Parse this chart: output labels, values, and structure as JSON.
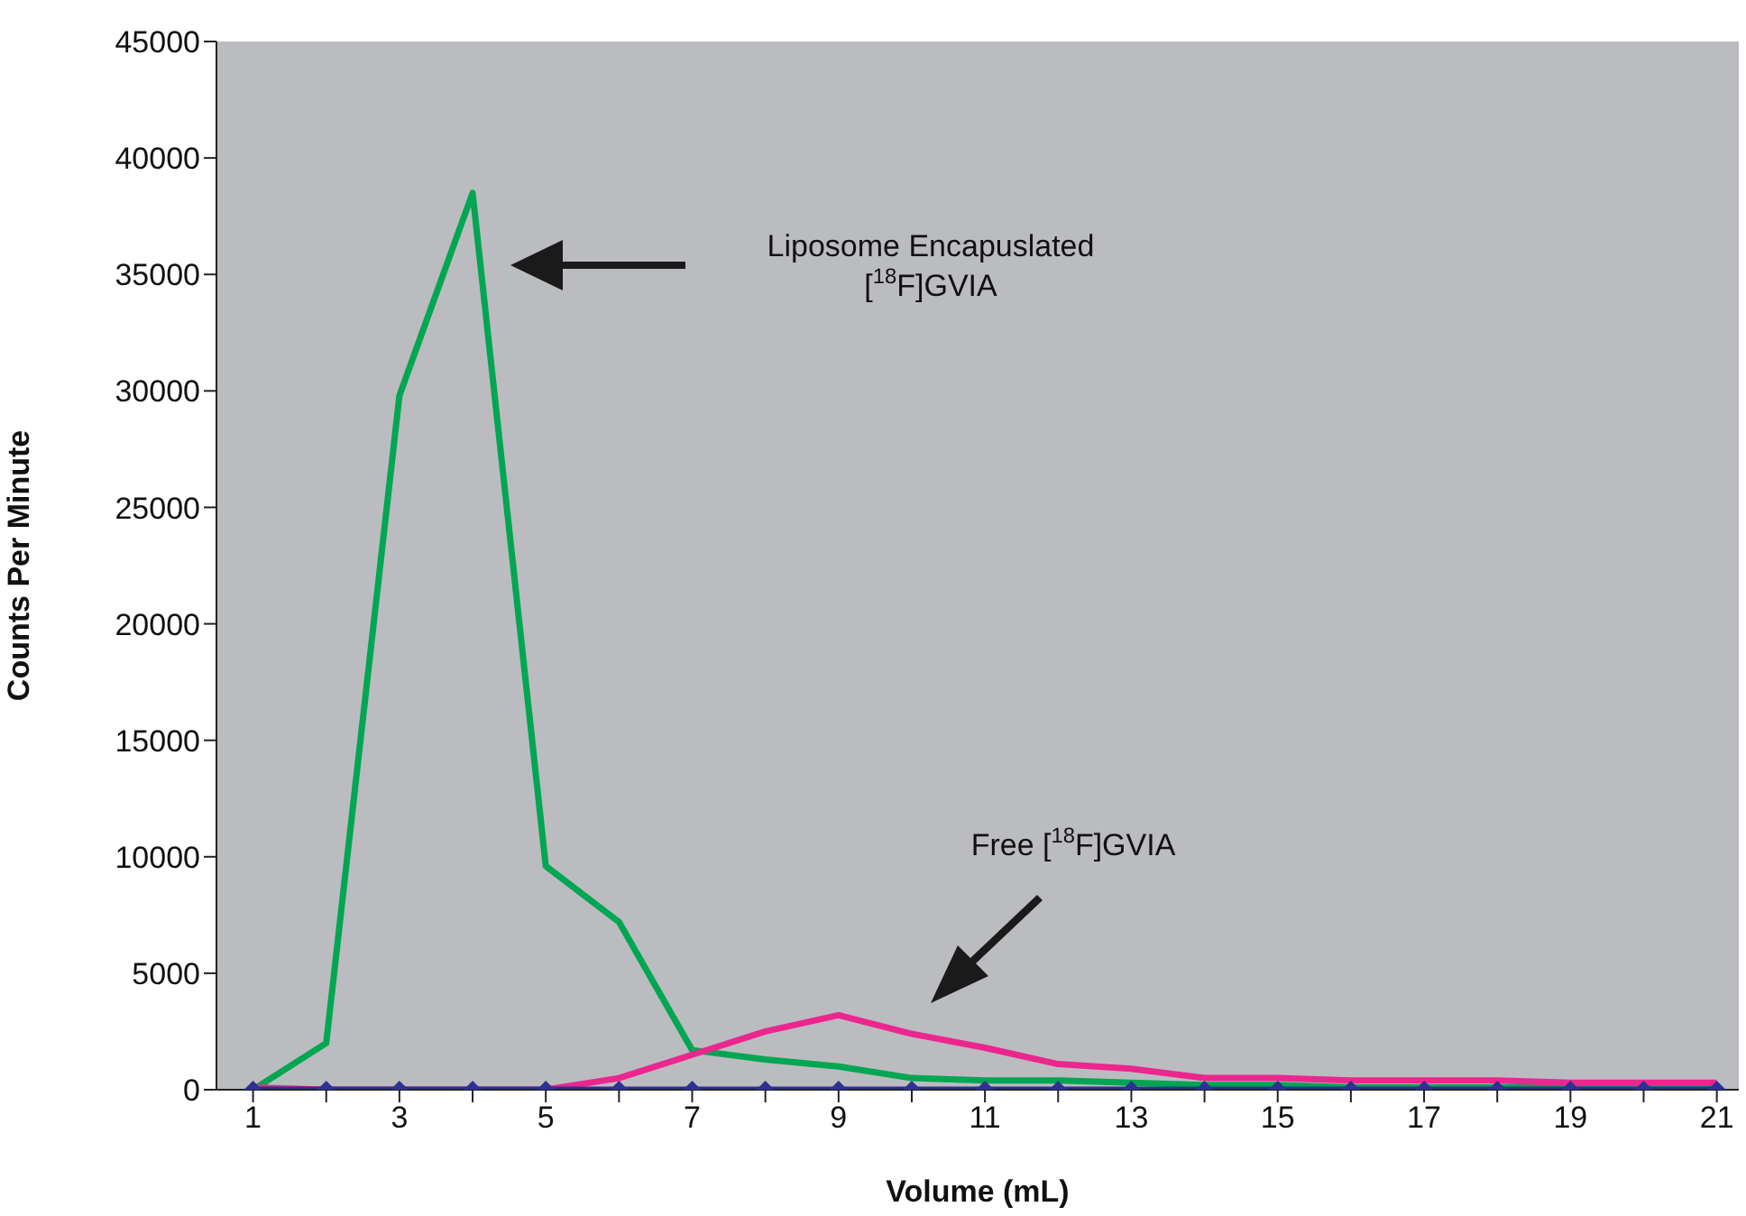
{
  "chart_data": {
    "type": "line",
    "xlabel": "Volume (mL)",
    "ylabel": "Counts Per Minute",
    "x": [
      1,
      2,
      3,
      4,
      5,
      6,
      7,
      8,
      9,
      10,
      11,
      12,
      13,
      14,
      15,
      16,
      17,
      18,
      19,
      20,
      21
    ],
    "xlim": [
      0.5,
      21.3
    ],
    "xticks": [
      1,
      {
        "value": 2,
        "label": null
      },
      3,
      {
        "value": 4,
        "label": null
      },
      5,
      {
        "value": 6,
        "label": null
      },
      7,
      {
        "value": 8,
        "label": null
      },
      9,
      {
        "value": 10,
        "label": null
      },
      11,
      {
        "value": 12,
        "label": null
      },
      13,
      {
        "value": 14,
        "label": null
      },
      15,
      {
        "value": 16,
        "label": null
      },
      17,
      {
        "value": 18,
        "label": null
      },
      19,
      {
        "value": 20,
        "label": null
      },
      21
    ],
    "series": [
      {
        "color": "#00a651",
        "marker": "none",
        "values": [
          0,
          2000,
          29800,
          38500,
          9600,
          7200,
          1700,
          1300,
          1000,
          500,
          400,
          400,
          300,
          200,
          200,
          100,
          100,
          100,
          100,
          100,
          100
        ]
      },
      {
        "color": "#ec268f",
        "marker": "none",
        "values": [
          100,
          0,
          0,
          0,
          0,
          500,
          1500,
          2500,
          3200,
          2400,
          1800,
          1100,
          900,
          500,
          500,
          400,
          400,
          400,
          300,
          300,
          300
        ]
      },
      {
        "color": "#2e3192",
        "marker": "diamond",
        "values": [
          0,
          0,
          0,
          0,
          0,
          0,
          0,
          0,
          0,
          0,
          0,
          0,
          0,
          0,
          0,
          0,
          0,
          0,
          0,
          0,
          0
        ]
      }
    ],
    "ylim": [
      0,
      45000
    ],
    "yticks": [
      0,
      5000,
      10000,
      15000,
      20000,
      25000,
      30000,
      35000,
      40000,
      45000
    ],
    "annotations": [
      "Liposome Encapuslated\n[$^{18}$F]GVIA",
      "Free [$^{18}$F]GVIA"
    ]
  }
}
